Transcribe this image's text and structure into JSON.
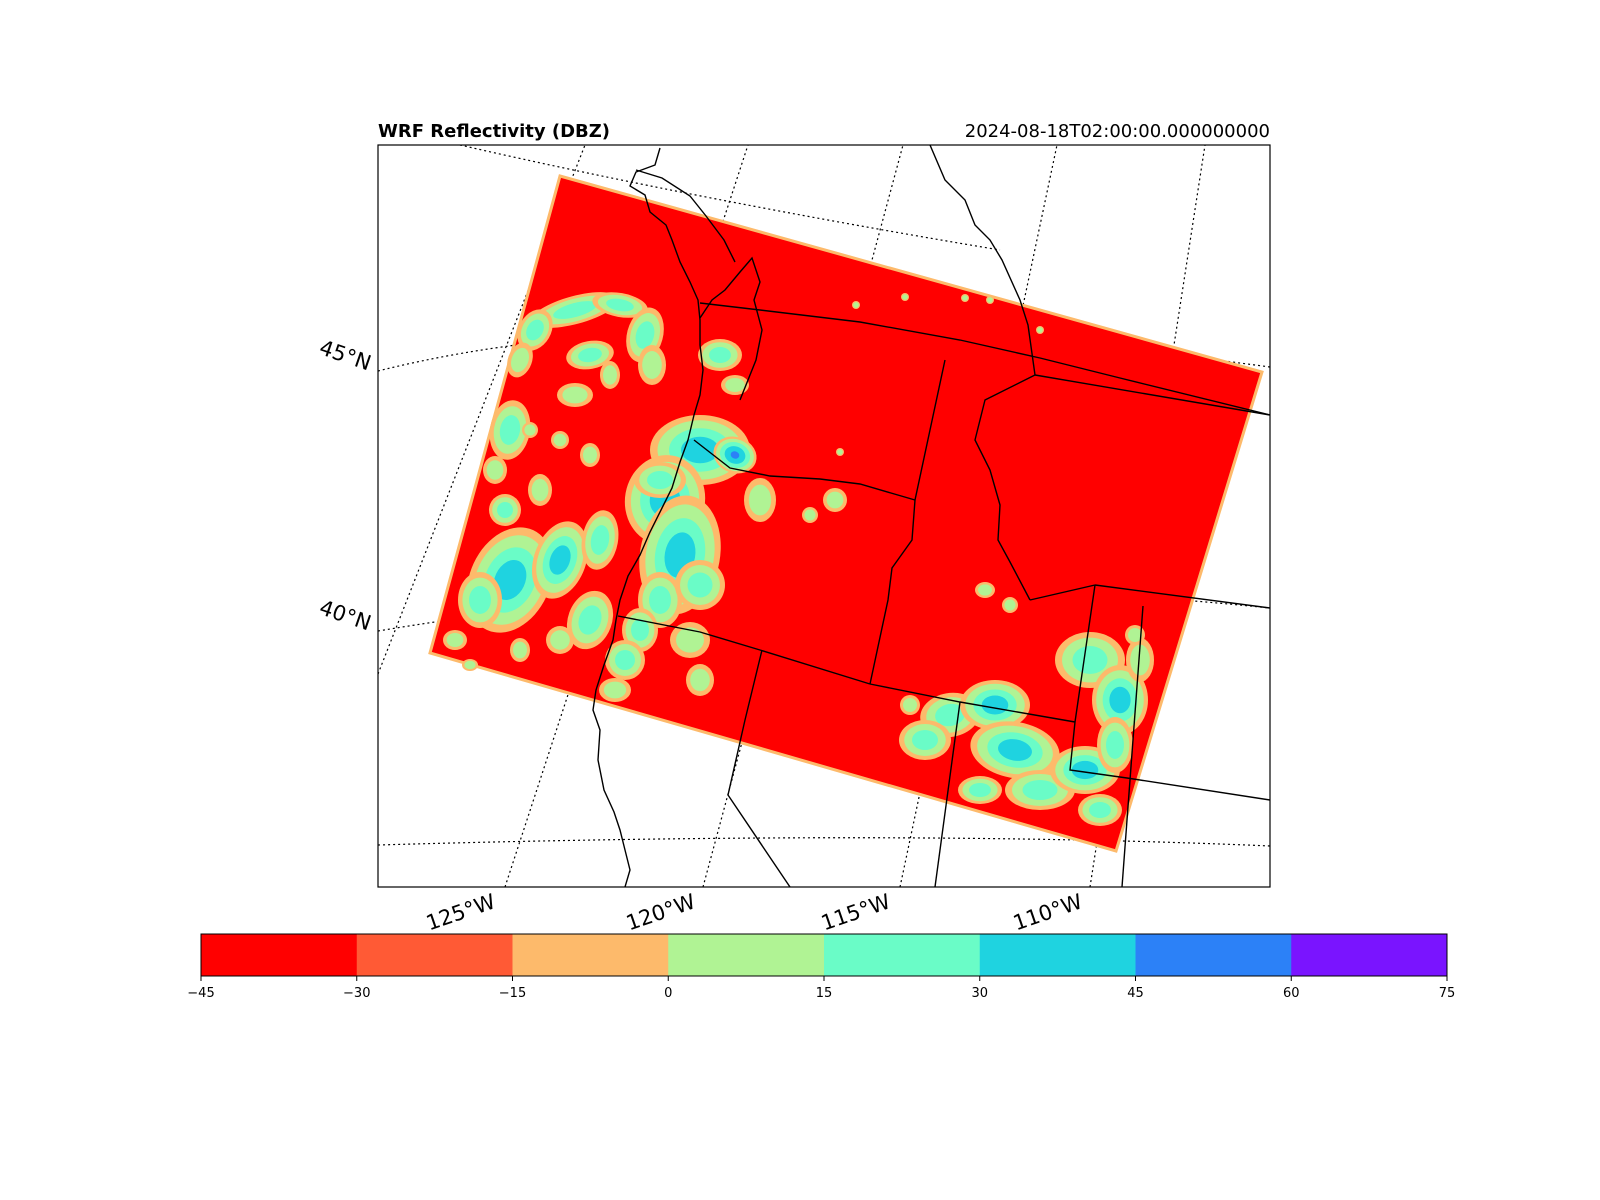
{
  "title": "WRF Reflectivity (DBZ)",
  "valid_time": "2024-08-18T02:00:00.000000000",
  "variable": "DBZ",
  "map": {
    "projection": "Lambert Conformal",
    "latitude_labels": [
      "45°N",
      "40°N"
    ],
    "longitude_labels": [
      "125°W",
      "120°W",
      "115°W",
      "110°W"
    ],
    "background_value_color": "#ff0000",
    "domain_edge_color": "#fdba6b",
    "coastline_color": "#000000",
    "gridline_style": "dotted"
  },
  "colorbar": {
    "orientation": "horizontal",
    "bins": [
      {
        "min": -45,
        "max": -30,
        "color": "#ff0000"
      },
      {
        "min": -30,
        "max": -15,
        "color": "#ff5a35"
      },
      {
        "min": -15,
        "max": 0,
        "color": "#fdba6b"
      },
      {
        "min": 0,
        "max": 15,
        "color": "#b0f394"
      },
      {
        "min": 15,
        "max": 30,
        "color": "#6afcc7"
      },
      {
        "min": 30,
        "max": 45,
        "color": "#1fd3e0"
      },
      {
        "min": 45,
        "max": 60,
        "color": "#2c81f7"
      },
      {
        "min": 60,
        "max": 75,
        "color": "#7a14ff"
      }
    ],
    "tick_labels": [
      "−45",
      "−30",
      "−15",
      "0",
      "15",
      "30",
      "45",
      "60",
      "75"
    ]
  }
}
